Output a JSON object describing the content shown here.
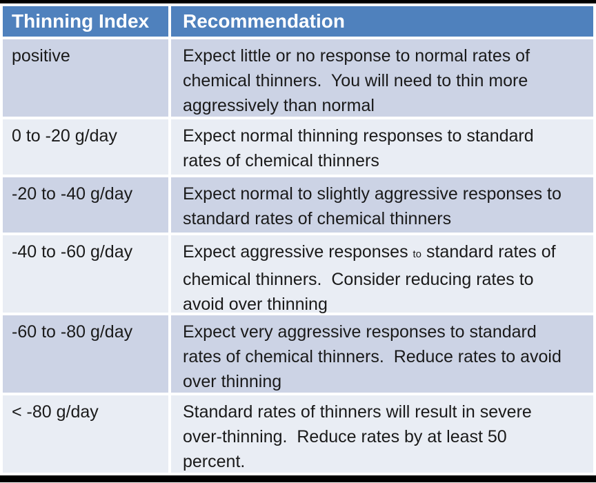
{
  "table": {
    "header": {
      "col1": "Thinning Index",
      "col2": "Recommendation"
    },
    "rows": [
      {
        "index": "positive",
        "lines": [
          "Expect little or no response to normal rates of",
          "chemical thinners.  You will need to thin more",
          "aggressively than normal"
        ]
      },
      {
        "index": "0 to -20 g/day",
        "lines": [
          "Expect normal thinning responses to standard",
          "rates of chemical thinners"
        ]
      },
      {
        "index": "-20 to -40 g/day",
        "lines": [
          "Expect normal to slightly aggressive responses to",
          "standard rates of chemical thinners"
        ]
      },
      {
        "index": "-40 to -60 g/day",
        "line1": {
          "pre": "Expect aggressive responses ",
          "small": "to",
          "post": " standard rates of"
        },
        "lines": [
          "chemical thinners.  Consider reducing rates to",
          "avoid over thinning"
        ]
      },
      {
        "index": "-60 to -80 g/day",
        "lines": [
          "Expect very aggressive responses to standard",
          "rates of chemical thinners.  Reduce rates to avoid",
          "over thinning"
        ]
      },
      {
        "index": "< -80 g/day",
        "lines": [
          "Standard rates of thinners will result in severe",
          "over-thinning.  Reduce rates by at least 50",
          "percent."
        ]
      }
    ],
    "colors": {
      "header_bg": "#4f81bd",
      "band_dark": "#ccd3e5",
      "band_light": "#e9edf4",
      "header_text": "#ffffff",
      "body_text": "#1a1a1a",
      "frame_bar": "#000000"
    }
  }
}
